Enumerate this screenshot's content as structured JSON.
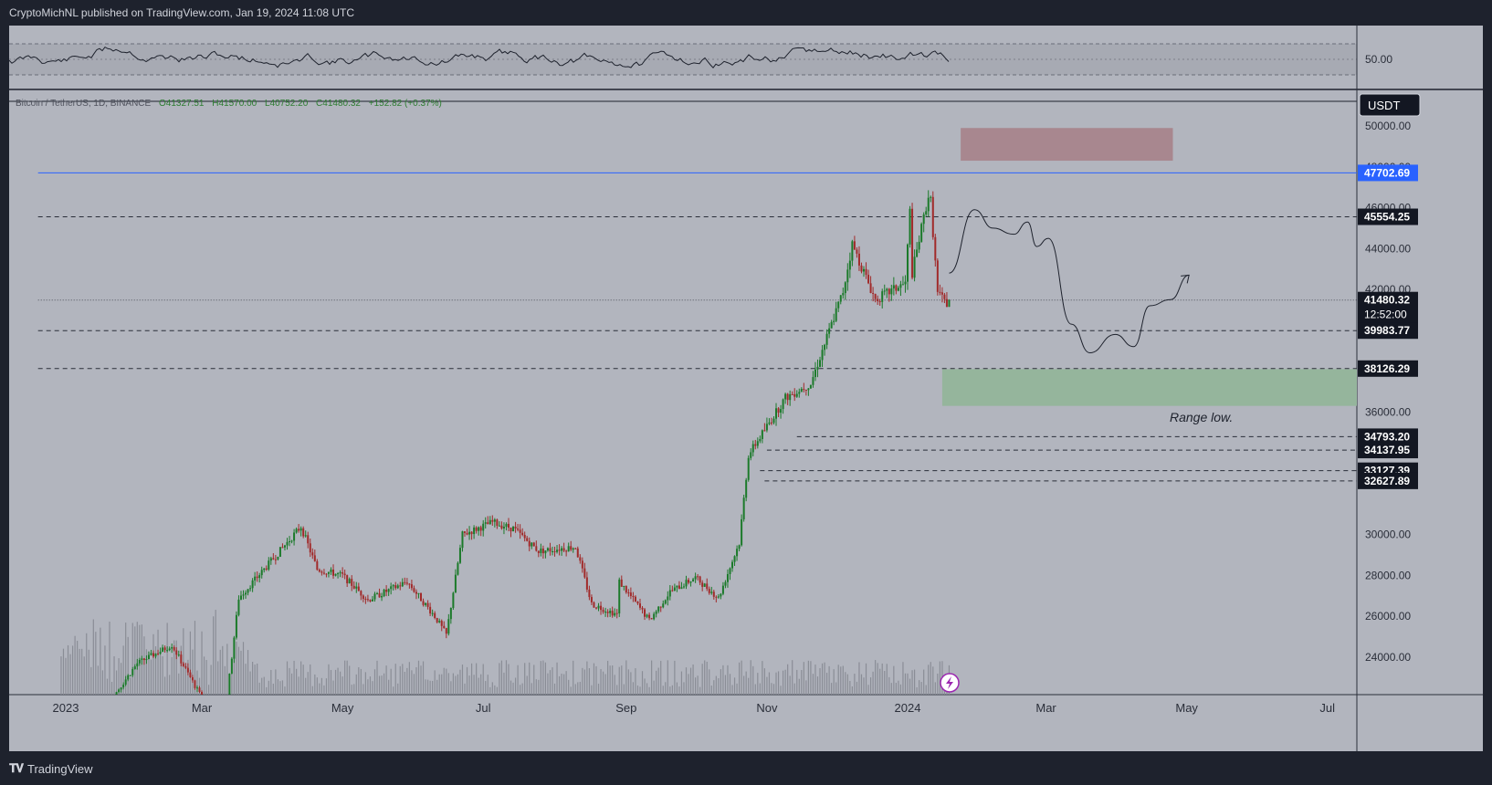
{
  "header": {
    "publisher_line": "CryptoMichNL published on TradingView.com, Jan 19, 2024 11:08 UTC"
  },
  "footer": {
    "brand": "TradingView",
    "brand_icon": "tradingview-logo-icon"
  },
  "symbol_line": {
    "name": "Bitcoin / TetherUS, 1D, BINANCE",
    "o": "O41327.51",
    "h": "H41570.00",
    "l": "L40752.20",
    "c": "C41480.32",
    "chg": "+152.82 (+0.37%)"
  },
  "currency_badge": "USDT",
  "oscillator": {
    "level_label": "50.00"
  },
  "chart_data": {
    "type": "candlestick",
    "title": "",
    "x_ticks": [
      "2023",
      "Mar",
      "May",
      "Jul",
      "Sep",
      "Nov",
      "2024",
      "Mar",
      "May",
      "Jul"
    ],
    "y_ticks": [
      "50000.00",
      "48000.00",
      "46000.00",
      "44000.00",
      "42000.00",
      "36000.00",
      "30000.00",
      "28000.00",
      "26000.00",
      "24000.00"
    ],
    "price_labels": [
      {
        "value": 47702.69,
        "text": "47702.69",
        "style": "blue"
      },
      {
        "value": 45554.25,
        "text": "45554.25",
        "style": "dark"
      },
      {
        "value": 41480.32,
        "text": "41480.32",
        "style": "dark",
        "sub": "12:52:00"
      },
      {
        "value": 39983.77,
        "text": "39983.77",
        "style": "dark"
      },
      {
        "value": 38126.29,
        "text": "38126.29",
        "style": "dark"
      },
      {
        "value": 34793.2,
        "text": "34793.20",
        "style": "dark"
      },
      {
        "value": 34137.95,
        "text": "34137.95",
        "style": "dark"
      },
      {
        "value": 33127.39,
        "text": "33127.39",
        "style": "dark"
      },
      {
        "value": 32627.89,
        "text": "32627.89",
        "style": "dark"
      }
    ],
    "zones": [
      {
        "name": "resistance-zone",
        "from": 48300,
        "to": 49900,
        "color": "#a8878f"
      },
      {
        "name": "support-zone",
        "from": 36300,
        "to": 38100,
        "color": "#95b59c"
      }
    ],
    "annotation": "Range low.",
    "price_path": [
      {
        "date": "2022-12-30",
        "price": 16600
      },
      {
        "date": "2023-01-14",
        "price": 20900
      },
      {
        "date": "2023-02-01",
        "price": 23700
      },
      {
        "date": "2023-02-16",
        "price": 24600
      },
      {
        "date": "2023-03-10",
        "price": 20200
      },
      {
        "date": "2023-03-17",
        "price": 26900
      },
      {
        "date": "2023-03-28",
        "price": 28300
      },
      {
        "date": "2023-04-13",
        "price": 30400
      },
      {
        "date": "2023-04-20",
        "price": 28300
      },
      {
        "date": "2023-05-01",
        "price": 28000
      },
      {
        "date": "2023-05-12",
        "price": 26800
      },
      {
        "date": "2023-05-29",
        "price": 27700
      },
      {
        "date": "2023-06-10",
        "price": 26000
      },
      {
        "date": "2023-06-15",
        "price": 25100
      },
      {
        "date": "2023-06-22",
        "price": 30000
      },
      {
        "date": "2023-07-05",
        "price": 30600
      },
      {
        "date": "2023-07-14",
        "price": 30300
      },
      {
        "date": "2023-07-25",
        "price": 29200
      },
      {
        "date": "2023-08-10",
        "price": 29400
      },
      {
        "date": "2023-08-17",
        "price": 26600
      },
      {
        "date": "2023-08-28",
        "price": 26100
      },
      {
        "date": "2023-08-29",
        "price": 27700
      },
      {
        "date": "2023-09-11",
        "price": 25800
      },
      {
        "date": "2023-09-20",
        "price": 27200
      },
      {
        "date": "2023-10-01",
        "price": 27900
      },
      {
        "date": "2023-10-11",
        "price": 26900
      },
      {
        "date": "2023-10-20",
        "price": 29600
      },
      {
        "date": "2023-10-24",
        "price": 33900
      },
      {
        "date": "2023-11-09",
        "price": 36700
      },
      {
        "date": "2023-11-20",
        "price": 37400
      },
      {
        "date": "2023-12-04",
        "price": 41900
      },
      {
        "date": "2023-12-08",
        "price": 44200
      },
      {
        "date": "2023-12-18",
        "price": 41500
      },
      {
        "date": "2023-12-31",
        "price": 42300
      },
      {
        "date": "2024-01-02",
        "price": 45800
      },
      {
        "date": "2024-01-03",
        "price": 42800
      },
      {
        "date": "2024-01-10",
        "price": 46600
      },
      {
        "date": "2024-01-11",
        "price": 46300
      },
      {
        "date": "2024-01-14",
        "price": 41800
      },
      {
        "date": "2024-01-18",
        "price": 41300
      },
      {
        "date": "2024-01-19",
        "price": 41480
      }
    ],
    "projection_path": [
      {
        "date": "2024-01-19",
        "price": 42800
      },
      {
        "date": "2024-01-30",
        "price": 45900
      },
      {
        "date": "2024-02-07",
        "price": 45000
      },
      {
        "date": "2024-02-16",
        "price": 44700
      },
      {
        "date": "2024-02-22",
        "price": 45300
      },
      {
        "date": "2024-02-26",
        "price": 44100
      },
      {
        "date": "2024-03-02",
        "price": 44500
      },
      {
        "date": "2024-03-12",
        "price": 40300
      },
      {
        "date": "2024-03-20",
        "price": 38900
      },
      {
        "date": "2024-03-31",
        "price": 39800
      },
      {
        "date": "2024-04-08",
        "price": 39200
      },
      {
        "date": "2024-04-15",
        "price": 41200
      },
      {
        "date": "2024-04-24",
        "price": 41500
      },
      {
        "date": "2024-05-02",
        "price": 42700
      }
    ]
  }
}
